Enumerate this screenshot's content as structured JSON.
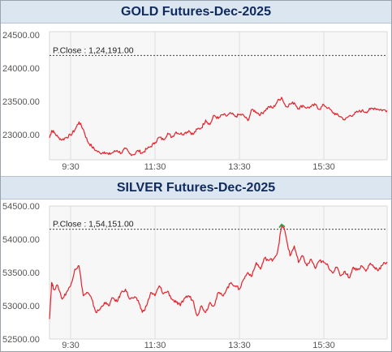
{
  "charts": [
    {
      "title": "GOLD Futures-Dec-2025",
      "prev_close_label": "P.Close : 1,24,191.00"
    },
    {
      "title": "SILVER Futures-Dec-2025",
      "prev_close_label": "P.Close : 1,54,151.00"
    }
  ],
  "chart_data": [
    {
      "type": "line",
      "title": "GOLD Futures-Dec-2025",
      "xlabel": "",
      "ylabel": "",
      "x_ticks": [
        "9:30",
        "11:30",
        "13:30",
        "15:30"
      ],
      "x_tick_positions": [
        9.5,
        11.5,
        13.5,
        15.5
      ],
      "y_ticks": [
        "24500.00",
        "24000.00",
        "23500.00",
        "23000.00"
      ],
      "y_tick_values": [
        24500,
        24000,
        23500,
        23000
      ],
      "xlim": [
        9.0,
        17.0
      ],
      "ylim": [
        22620,
        24550
      ],
      "grid": "vertical",
      "prev_close_value": 24191,
      "line_color": "#e8202a",
      "series": [
        {
          "x": [
            9.0,
            9.05,
            9.1,
            9.2,
            9.3,
            9.4,
            9.5,
            9.6,
            9.7,
            9.8,
            9.9,
            10.0,
            10.1,
            10.2,
            10.3,
            10.4,
            10.5,
            10.6,
            10.7,
            10.8,
            10.9,
            11.0,
            11.1,
            11.2,
            11.3,
            11.4,
            11.5,
            11.6,
            11.7,
            11.8,
            11.9,
            12.0,
            12.1,
            12.2,
            12.3,
            12.4,
            12.5,
            12.6,
            12.7,
            12.8,
            12.9,
            13.0,
            13.1,
            13.2,
            13.3,
            13.4,
            13.5,
            13.6,
            13.7,
            13.8,
            13.9,
            14.0,
            14.1,
            14.2,
            14.3,
            14.4,
            14.5,
            14.6,
            14.7,
            14.8,
            14.9,
            15.0,
            15.1,
            15.2,
            15.3,
            15.4,
            15.5,
            15.6,
            15.7,
            15.8,
            15.9,
            16.0,
            16.1,
            16.2,
            16.3,
            16.4,
            16.5,
            16.6,
            16.7,
            16.8,
            16.9,
            17.0
          ],
          "y": [
            22950,
            23060,
            23040,
            22960,
            22920,
            22960,
            22990,
            23070,
            23190,
            23080,
            22900,
            22820,
            22760,
            22720,
            22740,
            22700,
            22730,
            22760,
            22720,
            22790,
            22710,
            22700,
            22760,
            22720,
            22780,
            22820,
            22880,
            22960,
            22920,
            23020,
            22960,
            23040,
            23010,
            23020,
            23060,
            23000,
            23080,
            23100,
            23220,
            23150,
            23290,
            23240,
            23300,
            23280,
            23320,
            23270,
            23300,
            23290,
            23210,
            23380,
            23340,
            23300,
            23360,
            23420,
            23400,
            23500,
            23560,
            23420,
            23460,
            23480,
            23390,
            23440,
            23400,
            23420,
            23450,
            23380,
            23450,
            23400,
            23340,
            23300,
            23270,
            23220,
            23280,
            23300,
            23340,
            23360,
            23340,
            23380,
            23400,
            23380,
            23370,
            23360
          ]
        }
      ]
    },
    {
      "type": "line",
      "title": "SILVER Futures-Dec-2025",
      "xlabel": "",
      "ylabel": "",
      "x_ticks": [
        "9:30",
        "11:30",
        "13:30",
        "15:30"
      ],
      "x_tick_positions": [
        9.5,
        11.5,
        13.5,
        15.5
      ],
      "y_ticks": [
        "54500.00",
        "54000.00",
        "53500.00",
        "53000.00",
        "52500.00"
      ],
      "y_tick_values": [
        54500,
        54000,
        53500,
        53000,
        52500
      ],
      "xlim": [
        9.0,
        17.0
      ],
      "ylim": [
        52500,
        54500
      ],
      "grid": "vertical",
      "prev_close_value": 54151,
      "line_color": "#e8202a",
      "high_marker_color": "#1fa83a",
      "series": [
        {
          "x": [
            9.0,
            9.05,
            9.1,
            9.2,
            9.3,
            9.4,
            9.5,
            9.6,
            9.7,
            9.8,
            9.9,
            10.0,
            10.1,
            10.2,
            10.3,
            10.4,
            10.5,
            10.6,
            10.7,
            10.8,
            10.9,
            11.0,
            11.1,
            11.2,
            11.3,
            11.4,
            11.5,
            11.6,
            11.7,
            11.8,
            11.9,
            12.0,
            12.1,
            12.2,
            12.3,
            12.4,
            12.5,
            12.6,
            12.7,
            12.8,
            12.9,
            13.0,
            13.1,
            13.2,
            13.3,
            13.4,
            13.5,
            13.6,
            13.7,
            13.8,
            13.9,
            14.0,
            14.1,
            14.2,
            14.3,
            14.4,
            14.5,
            14.55,
            14.6,
            14.7,
            14.8,
            14.9,
            15.0,
            15.1,
            15.2,
            15.3,
            15.4,
            15.5,
            15.6,
            15.7,
            15.8,
            15.9,
            16.0,
            16.1,
            16.2,
            16.3,
            16.4,
            16.5,
            16.6,
            16.7,
            16.8,
            16.9,
            17.0
          ],
          "y": [
            52800,
            53350,
            53250,
            53300,
            53100,
            53200,
            53300,
            53550,
            53600,
            53150,
            53200,
            53100,
            52900,
            52950,
            53050,
            53000,
            53120,
            53060,
            53200,
            53250,
            53100,
            53120,
            53080,
            52900,
            53000,
            53200,
            53150,
            53300,
            53180,
            53220,
            53100,
            53050,
            53000,
            53120,
            53150,
            53080,
            52850,
            53000,
            52900,
            53050,
            53000,
            53200,
            53150,
            53250,
            53350,
            53300,
            53250,
            53400,
            53500,
            53450,
            53650,
            53550,
            53720,
            53680,
            53700,
            53800,
            54200,
            54180,
            54050,
            53750,
            53900,
            53650,
            53750,
            53600,
            53700,
            53560,
            53680,
            53650,
            53600,
            53500,
            53580,
            53450,
            53520,
            53420,
            53580,
            53540,
            53600,
            53520,
            53640,
            53580,
            53540,
            53620,
            53660
          ]
        }
      ]
    }
  ]
}
